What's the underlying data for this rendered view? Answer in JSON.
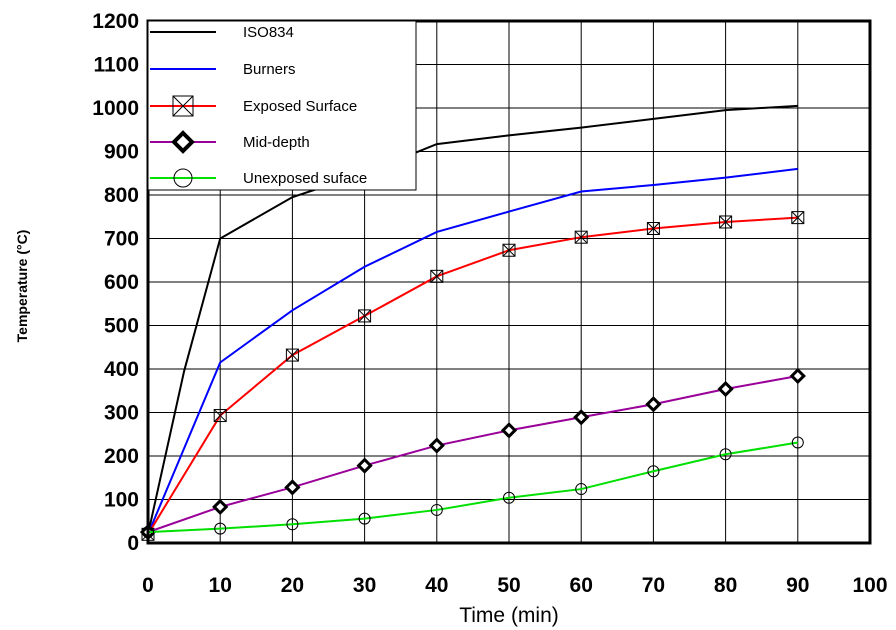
{
  "chart_data": {
    "type": "line",
    "xlabel": "Time (min)",
    "ylabel": "Temperature (°C)",
    "xlim": [
      0,
      100
    ],
    "ylim": [
      0,
      1200
    ],
    "xticks": [
      "0",
      "10",
      "20",
      "30",
      "40",
      "50",
      "60",
      "70",
      "80",
      "90",
      "100"
    ],
    "yticks": [
      "0",
      "100",
      "200",
      "300",
      "400",
      "500",
      "600",
      "700",
      "800",
      "900",
      "1000",
      "1100",
      "1200"
    ],
    "grid": true,
    "legend_position": "top-left",
    "series": [
      {
        "name": "ISO834",
        "color": "#000000",
        "marker": "none",
        "points": [
          [
            0,
            20
          ],
          [
            5,
            395
          ],
          [
            10,
            700
          ],
          [
            20,
            795
          ],
          [
            30,
            850
          ],
          [
            40,
            917
          ],
          [
            50,
            937
          ],
          [
            60,
            955
          ],
          [
            70,
            975
          ],
          [
            80,
            995
          ],
          [
            90,
            1005
          ]
        ]
      },
      {
        "name": "Burners",
        "color": "#0000ff",
        "marker": "none",
        "points": [
          [
            0,
            20
          ],
          [
            10,
            415
          ],
          [
            20,
            535
          ],
          [
            30,
            635
          ],
          [
            40,
            715
          ],
          [
            50,
            762
          ],
          [
            60,
            808
          ],
          [
            70,
            823
          ],
          [
            80,
            840
          ],
          [
            90,
            860
          ]
        ]
      },
      {
        "name": "Exposed Surface",
        "color": "#ff0000",
        "marker": "box-x",
        "points": [
          [
            0,
            20
          ],
          [
            10,
            293
          ],
          [
            20,
            432
          ],
          [
            30,
            522
          ],
          [
            40,
            613
          ],
          [
            50,
            673
          ],
          [
            60,
            703
          ],
          [
            70,
            723
          ],
          [
            80,
            738
          ],
          [
            90,
            748
          ]
        ]
      },
      {
        "name": "Mid-depth",
        "color": "#990099",
        "marker": "diamond",
        "points": [
          [
            0,
            25
          ],
          [
            10,
            83
          ],
          [
            20,
            128
          ],
          [
            30,
            178
          ],
          [
            40,
            224
          ],
          [
            50,
            259
          ],
          [
            60,
            289
          ],
          [
            70,
            319
          ],
          [
            80,
            354
          ],
          [
            90,
            384
          ]
        ]
      },
      {
        "name": "Unexposed suface",
        "color": "#00e000",
        "marker": "circle",
        "points": [
          [
            0,
            25
          ],
          [
            10,
            33
          ],
          [
            20,
            43
          ],
          [
            30,
            56
          ],
          [
            40,
            76
          ],
          [
            50,
            104
          ],
          [
            60,
            124
          ],
          [
            70,
            165
          ],
          [
            80,
            204
          ],
          [
            90,
            231
          ]
        ]
      }
    ]
  }
}
